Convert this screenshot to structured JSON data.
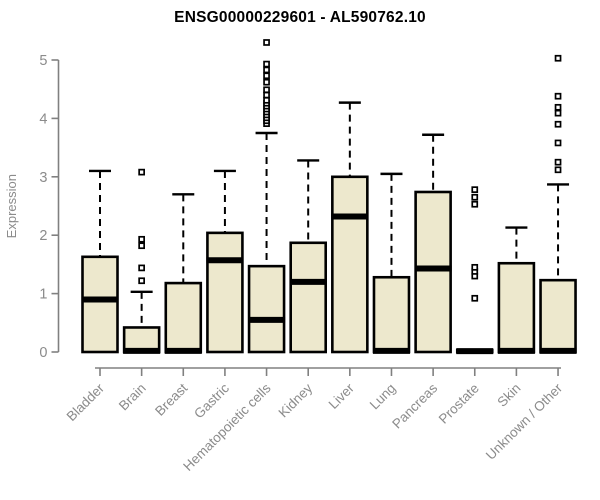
{
  "chart_data": {
    "type": "boxplot",
    "title": "ENSG00000229601 - AL590762.10",
    "ylabel": "Expression",
    "xlabel": "",
    "ylim": [
      0,
      5
    ],
    "yticks": [
      0,
      1,
      2,
      3,
      4,
      5
    ],
    "grid": false,
    "x_label_rotation": 45,
    "categories": [
      "Bladder",
      "Brain",
      "Breast",
      "Gastric",
      "Hematopoietic cells",
      "Kidney",
      "Liver",
      "Lung",
      "Pancreas",
      "Prostate",
      "Skin",
      "Unknown / Other"
    ],
    "boxes": [
      {
        "category": "Bladder",
        "whisker_low": 0,
        "q1": 0,
        "median": 0.9,
        "q3": 1.63,
        "whisker_high": 3.1,
        "outliers": []
      },
      {
        "category": "Brain",
        "whisker_low": 0,
        "q1": 0,
        "median": 0.02,
        "q3": 0.42,
        "whisker_high": 1.03,
        "outliers": [
          1.22,
          1.44,
          1.82,
          1.93,
          3.08
        ]
      },
      {
        "category": "Breast",
        "whisker_low": 0,
        "q1": 0,
        "median": 0.02,
        "q3": 1.18,
        "whisker_high": 2.7,
        "outliers": []
      },
      {
        "category": "Gastric",
        "whisker_low": 0,
        "q1": 0,
        "median": 1.57,
        "q3": 2.04,
        "whisker_high": 3.1,
        "outliers": []
      },
      {
        "category": "Hematopoietic cells",
        "whisker_low": 0,
        "q1": 0,
        "median": 0.55,
        "q3": 1.47,
        "whisker_high": 3.75,
        "outliers": [
          3.91,
          3.96,
          4.01,
          4.06,
          4.11,
          4.16,
          4.21,
          4.26,
          4.31,
          4.4,
          4.49,
          4.62,
          4.73,
          4.83,
          4.93,
          5.3
        ]
      },
      {
        "category": "Kidney",
        "whisker_low": 0,
        "q1": 0,
        "median": 1.2,
        "q3": 1.87,
        "whisker_high": 3.28,
        "outliers": []
      },
      {
        "category": "Liver",
        "whisker_low": 0,
        "q1": 0,
        "median": 2.32,
        "q3": 3.0,
        "whisker_high": 4.27,
        "outliers": []
      },
      {
        "category": "Lung",
        "whisker_low": 0,
        "q1": 0,
        "median": 0.02,
        "q3": 1.28,
        "whisker_high": 3.05,
        "outliers": []
      },
      {
        "category": "Pancreas",
        "whisker_low": 0,
        "q1": 0,
        "median": 1.43,
        "q3": 2.74,
        "whisker_high": 3.72,
        "outliers": []
      },
      {
        "category": "Prostate",
        "whisker_low": 0,
        "q1": 0,
        "median": 0.015,
        "q3": 0.03,
        "whisker_high": 0.03,
        "outliers": [
          0.92,
          1.3,
          1.38,
          1.45,
          2.53,
          2.65,
          2.78
        ]
      },
      {
        "category": "Skin",
        "whisker_low": 0,
        "q1": 0,
        "median": 0.02,
        "q3": 1.52,
        "whisker_high": 2.13,
        "outliers": []
      },
      {
        "category": "Unknown / Other",
        "whisker_low": 0,
        "q1": 0,
        "median": 0.02,
        "q3": 1.23,
        "whisker_high": 2.87,
        "outliers": [
          3.12,
          3.25,
          3.58,
          3.9,
          4.09,
          4.19,
          4.38,
          5.03
        ]
      }
    ],
    "colors": {
      "box_fill": "#EDE8CD",
      "box_border": "#000000",
      "median": "#000000",
      "whisker": "#000000",
      "outlier": "#000000",
      "axis": "#808080",
      "tick_label": "#8b8b8b",
      "title": "#000000",
      "background": "#ffffff"
    }
  }
}
